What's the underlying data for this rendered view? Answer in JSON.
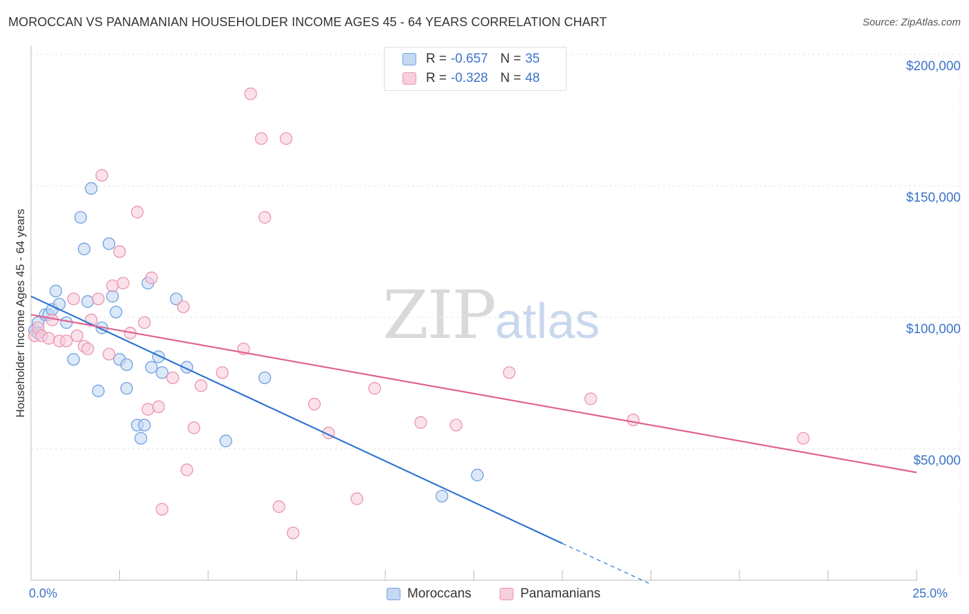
{
  "chart_data": {
    "type": "scatter",
    "title": "MOROCCAN VS PANAMANIAN HOUSEHOLDER INCOME AGES 45 - 64 YEARS CORRELATION CHART",
    "source": "Source: ZipAtlas.com",
    "xlabel": "",
    "ylabel": "Householder Income Ages 45 - 64 years",
    "xlim": [
      0,
      25
    ],
    "ylim": [
      0,
      200000
    ],
    "x_tick_labels": [
      "0.0%",
      "25.0%"
    ],
    "y_tick_labels": [
      "$200,000",
      "$150,000",
      "$100,000",
      "$50,000"
    ],
    "y_tick_values": [
      200000,
      150000,
      100000,
      50000
    ],
    "watermark": {
      "zip": "ZIP",
      "atlas": "atlas"
    },
    "legend": {
      "rows": [
        {
          "r_label": "R =",
          "r_value": "-0.657",
          "n_label": "N =",
          "n_value": "35"
        },
        {
          "r_label": "R =",
          "r_value": "-0.328",
          "n_label": "N =",
          "n_value": "48"
        }
      ]
    },
    "series": [
      {
        "name": "Moroccans",
        "color": "#6f9fde",
        "fill": "#c5d9f3",
        "line_color": "#2e73d2",
        "trend": {
          "x0": 0.0,
          "y0": 108000,
          "x1": 15.0,
          "y1": 14000,
          "dash_x1": 17.5,
          "dash_y1": -1500
        },
        "points": [
          [
            0.1,
            95000
          ],
          [
            0.2,
            98000
          ],
          [
            0.4,
            101000
          ],
          [
            0.5,
            101000
          ],
          [
            0.6,
            103000
          ],
          [
            0.7,
            110000
          ],
          [
            0.8,
            105000
          ],
          [
            1.0,
            98000
          ],
          [
            1.2,
            84000
          ],
          [
            1.4,
            138000
          ],
          [
            1.5,
            126000
          ],
          [
            1.6,
            106000
          ],
          [
            1.7,
            149000
          ],
          [
            1.9,
            72000
          ],
          [
            2.0,
            96000
          ],
          [
            2.2,
            128000
          ],
          [
            2.3,
            108000
          ],
          [
            2.4,
            102000
          ],
          [
            2.5,
            84000
          ],
          [
            2.7,
            82000
          ],
          [
            2.7,
            73000
          ],
          [
            3.0,
            59000
          ],
          [
            3.1,
            54000
          ],
          [
            3.2,
            59000
          ],
          [
            3.3,
            113000
          ],
          [
            3.4,
            81000
          ],
          [
            3.6,
            85000
          ],
          [
            3.7,
            79000
          ],
          [
            4.1,
            107000
          ],
          [
            4.4,
            81000
          ],
          [
            5.5,
            53000
          ],
          [
            6.6,
            77000
          ],
          [
            11.6,
            32000
          ],
          [
            12.6,
            40000
          ],
          [
            0.2,
            94000
          ]
        ]
      },
      {
        "name": "Panamanians",
        "color": "#e994b0",
        "fill": "#f8cfdc",
        "line_color": "#e0618e",
        "trend": {
          "x0": 0.0,
          "y0": 101000,
          "x1": 25.0,
          "y1": 41000
        },
        "points": [
          [
            0.1,
            93000
          ],
          [
            0.2,
            96000
          ],
          [
            0.3,
            93000
          ],
          [
            0.5,
            92000
          ],
          [
            0.6,
            99000
          ],
          [
            0.8,
            91000
          ],
          [
            1.0,
            91000
          ],
          [
            1.2,
            107000
          ],
          [
            1.3,
            93000
          ],
          [
            1.5,
            89000
          ],
          [
            1.6,
            88000
          ],
          [
            1.7,
            99000
          ],
          [
            1.9,
            107000
          ],
          [
            2.0,
            154000
          ],
          [
            2.2,
            86000
          ],
          [
            2.3,
            112000
          ],
          [
            2.5,
            125000
          ],
          [
            2.6,
            113000
          ],
          [
            2.8,
            94000
          ],
          [
            3.0,
            140000
          ],
          [
            3.2,
            98000
          ],
          [
            3.3,
            65000
          ],
          [
            3.4,
            115000
          ],
          [
            3.6,
            66000
          ],
          [
            3.7,
            27000
          ],
          [
            4.0,
            77000
          ],
          [
            4.3,
            104000
          ],
          [
            4.4,
            42000
          ],
          [
            4.6,
            58000
          ],
          [
            4.8,
            74000
          ],
          [
            5.4,
            79000
          ],
          [
            6.0,
            88000
          ],
          [
            6.2,
            185000
          ],
          [
            6.5,
            168000
          ],
          [
            6.6,
            138000
          ],
          [
            7.0,
            28000
          ],
          [
            7.2,
            168000
          ],
          [
            7.4,
            18000
          ],
          [
            8.0,
            67000
          ],
          [
            8.4,
            56000
          ],
          [
            9.2,
            31000
          ],
          [
            9.7,
            73000
          ],
          [
            11.0,
            60000
          ],
          [
            12.0,
            59000
          ],
          [
            13.5,
            79000
          ],
          [
            15.8,
            69000
          ],
          [
            17.0,
            61000
          ],
          [
            21.8,
            54000
          ]
        ]
      }
    ]
  }
}
